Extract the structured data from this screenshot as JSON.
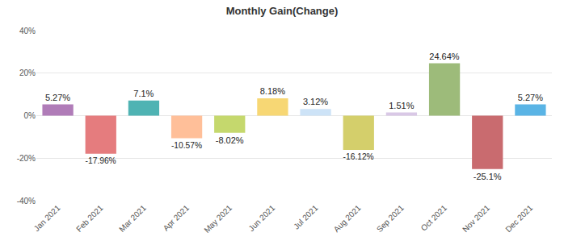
{
  "chart_data": {
    "type": "bar",
    "title": "Monthly Gain(Change)",
    "categories": [
      "Jan 2021",
      "Feb 2021",
      "Mar 2021",
      "Apr 2021",
      "May 2021",
      "Jun 2021",
      "Jul 2021",
      "Aug 2021",
      "Sep 2021",
      "Oct 2021",
      "Nov 2021",
      "Dec 2021"
    ],
    "values": [
      5.27,
      -17.96,
      7.1,
      -10.57,
      -8.02,
      8.18,
      3.12,
      -16.12,
      1.51,
      24.64,
      -25.1,
      5.27
    ],
    "value_labels": [
      "5.27%",
      "-17.96%",
      "7.1%",
      "-10.57%",
      "-8.02%",
      "8.18%",
      "3.12%",
      "-16.12%",
      "1.51%",
      "24.64%",
      "-25.1%",
      "5.27%"
    ],
    "colors": [
      "#b07cb8",
      "#e57c7e",
      "#4fb3b3",
      "#ffbf99",
      "#c5d86d",
      "#f7d774",
      "#cde3f7",
      "#d4cf6b",
      "#d9c8e6",
      "#9dbb7a",
      "#c96b6f",
      "#5ab4e5"
    ],
    "ylim": [
      -40,
      40
    ],
    "yticks": [
      {
        "value": -40,
        "label": "-40%"
      },
      {
        "value": -20,
        "label": "-20%"
      },
      {
        "value": 0,
        "label": "0%"
      },
      {
        "value": 20,
        "label": "20%"
      },
      {
        "value": 40,
        "label": "40%"
      }
    ],
    "grid": true,
    "data_labels": true
  }
}
